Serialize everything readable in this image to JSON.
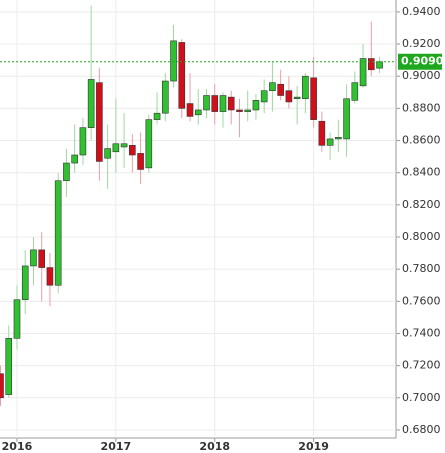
{
  "chart_data": {
    "type": "candlestick",
    "categories": [
      null,
      null,
      "2016",
      null,
      null,
      null,
      null,
      null,
      null,
      null,
      null,
      null,
      null,
      null,
      "2017",
      null,
      null,
      null,
      null,
      null,
      null,
      null,
      null,
      null,
      null,
      null,
      "2018",
      null,
      null,
      null,
      null,
      null,
      null,
      null,
      null,
      null,
      null,
      null,
      "2019",
      null,
      null,
      null,
      null,
      null,
      null,
      null,
      null
    ],
    "open": [
      0.715,
      0.702,
      0.737,
      0.761,
      0.782,
      0.792,
      0.781,
      0.77,
      0.835,
      0.846,
      0.851,
      0.868,
      0.896,
      0.849,
      0.853,
      0.856,
      0.857,
      0.852,
      0.843,
      0.873,
      0.877,
      0.897,
      0.921,
      0.883,
      0.876,
      0.879,
      0.888,
      0.878,
      0.887,
      0.879,
      0.878,
      0.879,
      0.884,
      0.891,
      0.895,
      0.891,
      0.886,
      0.886,
      0.899,
      0.872,
      0.857,
      0.861,
      0.861,
      0.885,
      0.894,
      0.911,
      0.905
    ],
    "high": [
      0.72,
      0.745,
      0.77,
      0.792,
      0.8,
      0.803,
      0.79,
      0.84,
      0.855,
      0.87,
      0.874,
      0.944,
      0.905,
      0.87,
      0.886,
      0.877,
      0.864,
      0.865,
      0.876,
      0.89,
      0.902,
      0.932,
      0.923,
      0.902,
      0.892,
      0.892,
      0.895,
      0.89,
      0.891,
      0.886,
      0.891,
      0.889,
      0.898,
      0.909,
      0.904,
      0.9,
      0.894,
      0.902,
      0.912,
      0.878,
      0.865,
      0.873,
      0.895,
      0.903,
      0.92,
      0.934,
      0.912
    ],
    "low": [
      0.695,
      0.7,
      0.73,
      0.752,
      0.77,
      0.76,
      0.757,
      0.765,
      0.825,
      0.84,
      0.845,
      0.86,
      0.835,
      0.83,
      0.84,
      0.843,
      0.84,
      0.833,
      0.84,
      0.87,
      0.872,
      0.893,
      0.874,
      0.872,
      0.87,
      0.874,
      0.87,
      0.868,
      0.87,
      0.862,
      0.872,
      0.873,
      0.877,
      0.878,
      0.885,
      0.88,
      0.87,
      0.877,
      0.868,
      0.853,
      0.848,
      0.853,
      0.85,
      0.883,
      0.893,
      0.9,
      0.902
    ],
    "close": [
      0.7,
      0.737,
      0.761,
      0.782,
      0.792,
      0.781,
      0.77,
      0.835,
      0.846,
      0.851,
      0.868,
      0.898,
      0.847,
      0.855,
      0.858,
      0.858,
      0.851,
      0.842,
      0.873,
      0.877,
      0.897,
      0.922,
      0.88,
      0.875,
      0.879,
      0.888,
      0.878,
      0.888,
      0.879,
      0.878,
      0.879,
      0.885,
      0.891,
      0.896,
      0.888,
      0.884,
      0.887,
      0.9,
      0.873,
      0.857,
      0.861,
      0.862,
      0.886,
      0.896,
      0.911,
      0.904,
      0.909
    ],
    "up_color": "#2fc12f",
    "down_color": "#d10f1b",
    "current": {
      "value": 0.909,
      "label": "0.9090"
    },
    "current_color": "#1fa81f",
    "ylim": [
      0.675,
      0.9474
    ],
    "yticks": [
      {
        "value": 0.94,
        "label": "0.9400"
      },
      {
        "value": 0.92,
        "label": "0.9200"
      },
      {
        "value": 0.9,
        "label": "0.9000"
      },
      {
        "value": 0.88,
        "label": "0.8800"
      },
      {
        "value": 0.86,
        "label": "0.8600"
      },
      {
        "value": 0.84,
        "label": "0.8400"
      },
      {
        "value": 0.82,
        "label": "0.8200"
      },
      {
        "value": 0.8,
        "label": "0.8000"
      },
      {
        "value": 0.78,
        "label": "0.7800"
      },
      {
        "value": 0.76,
        "label": "0.7600"
      },
      {
        "value": 0.74,
        "label": "0.7400"
      },
      {
        "value": 0.72,
        "label": "0.7200"
      },
      {
        "value": 0.7,
        "label": "0.7000"
      },
      {
        "value": 0.68,
        "label": "0.6800"
      }
    ],
    "grid": true
  }
}
